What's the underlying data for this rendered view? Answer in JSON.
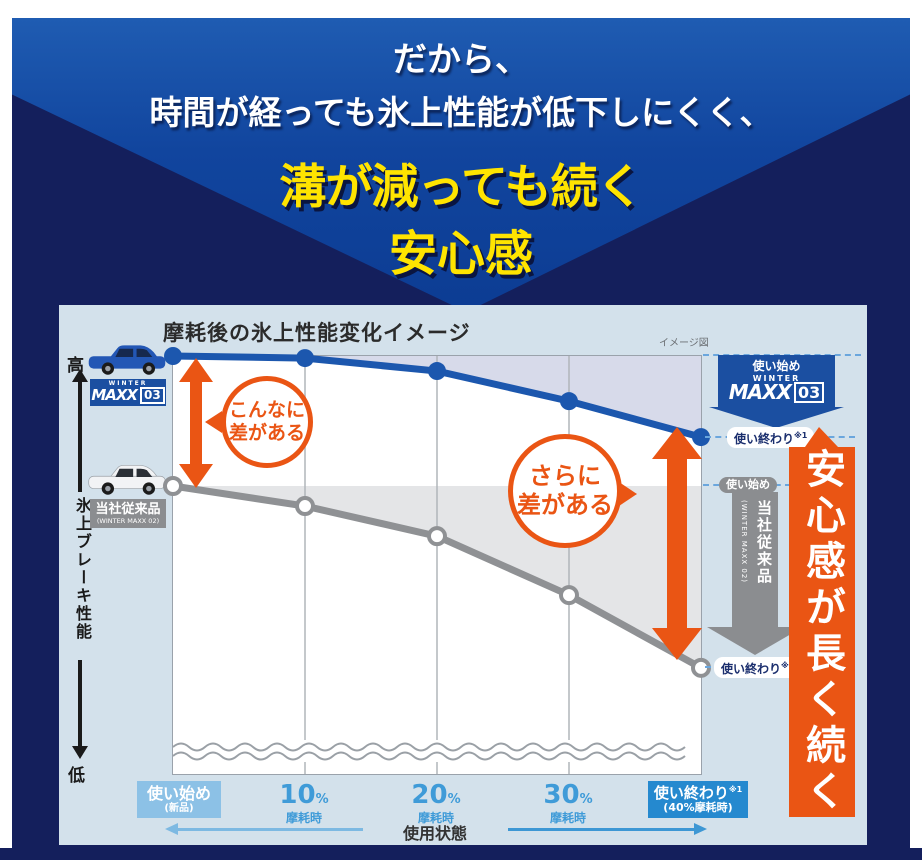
{
  "header": {
    "line1": "だから、",
    "line2": "時間が経っても氷上性能が低下しにくく、",
    "line3": "溝が減っても続く",
    "line4": "安心感"
  },
  "panel": {
    "title": "摩耗後の氷上性能変化イメージ",
    "note": "イメージ図",
    "y_axis": {
      "high": "高",
      "label": "氷上ブレーキ性能",
      "low": "低"
    },
    "products": {
      "maxx03": {
        "brand_top": "WINTER",
        "brand_main": "MAXX",
        "brand_num": "03"
      },
      "maxx02": {
        "name": "当社従来品",
        "sub": "(WINTER MAXX 02)"
      }
    },
    "annotations": {
      "diff1_l1": "こんなに",
      "diff1_l2": "差がある",
      "diff2_l1": "さらに",
      "diff2_l2": "差がある",
      "banner": "安心感が長く続く"
    },
    "right_labels": {
      "blue_start": "使い始め",
      "blue_end": "使い終わり",
      "blue_end_note": "※1",
      "gray_start": "使い始め",
      "gray_end": "使い終わり",
      "gray_end_note": "※1"
    },
    "x_axis": {
      "label": "使用状態",
      "items": [
        {
          "main": "使い始め",
          "sub": "(新品)"
        },
        {
          "num": "10",
          "pct": "%",
          "sub": "摩耗時"
        },
        {
          "num": "20",
          "pct": "%",
          "sub": "摩耗時"
        },
        {
          "num": "30",
          "pct": "%",
          "sub": "摩耗時"
        },
        {
          "main": "使い終わり",
          "note": "※1",
          "sub": "(40%摩耗時)"
        }
      ]
    }
  },
  "colors": {
    "orange": "#ea5514",
    "blue_line": "#1c57ae",
    "gray_line": "#8f9194",
    "navy": "#141f5c",
    "bright_blue": "#11459e",
    "yellow": "#ffe400",
    "panel_bg": "#d3e1eb",
    "badge_light_blue": "#8cc1e6",
    "badge_strong_blue": "#2589cf",
    "maxx_badge_blue": "#1b4fa1"
  },
  "chart_data": {
    "type": "line",
    "title": "摩耗後の氷上性能変化イメージ",
    "xlabel": "使用状態",
    "ylabel": "氷上ブレーキ性能（高→低）",
    "categories": [
      "使い始め(新品)",
      "10%摩耗時",
      "20%摩耗時",
      "30%摩耗時",
      "使い終わり※1(40%摩耗時)"
    ],
    "series": [
      {
        "name": "WINTER MAXX 03",
        "color": "#1c57ae",
        "values": [
          100,
          99.5,
          96.4,
          89.2,
          80.6
        ]
      },
      {
        "name": "当社従来品 (WINTER MAXX 02)",
        "color": "#8f9194",
        "values": [
          68.9,
          64.1,
          56.9,
          42.8,
          25.4
        ]
      }
    ],
    "ylim": [
      0,
      100
    ],
    "grid": "vertical-only",
    "legend_position": "left",
    "note": "イメージ図 — conceptual image chart, no numeric axis; values are relative estimates"
  }
}
